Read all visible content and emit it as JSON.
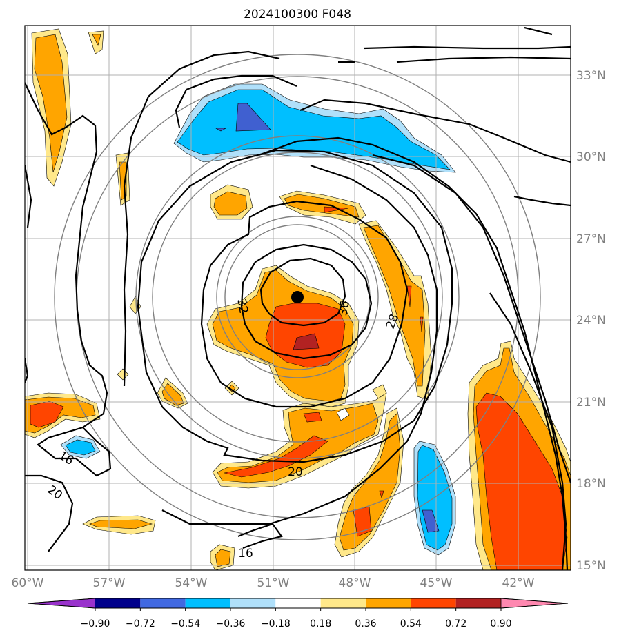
{
  "title": "2024100300 F048",
  "map": {
    "lon_labels": [
      "60°W",
      "57°W",
      "54°W",
      "51°W",
      "48°W",
      "45°W",
      "42°W"
    ],
    "lat_labels": [
      "33°N",
      "30°N",
      "27°N",
      "24°N",
      "21°N",
      "18°N",
      "15°N"
    ],
    "storm_center": {
      "lat": "24.8°N",
      "lon": "49.9°W"
    },
    "contour_labels": [
      "32",
      "36",
      "28",
      "20",
      "16",
      "20",
      "16"
    ],
    "fill_colors": {
      "cyan": "#00bfff",
      "light_blue": "#b0e0fa",
      "royal_blue": "#4060d0",
      "light_yellow": "#ffe88a",
      "orange": "#ffa500",
      "red_orange": "#ff4500",
      "dark_red": "#b22222",
      "pink": "#ff88b0"
    }
  },
  "colorbar": {
    "labels": [
      "−0.90",
      "−0.72",
      "−0.54",
      "−0.36",
      "−0.18",
      "0.18",
      "0.36",
      "0.54",
      "0.72",
      "0.90"
    ],
    "colors": [
      "#9932cc",
      "#00008b",
      "#4169e1",
      "#00bfff",
      "#b0e0fa",
      "#ffffff",
      "#ffe88a",
      "#ffa500",
      "#ff4500",
      "#b22222",
      "#ff88b0"
    ]
  }
}
